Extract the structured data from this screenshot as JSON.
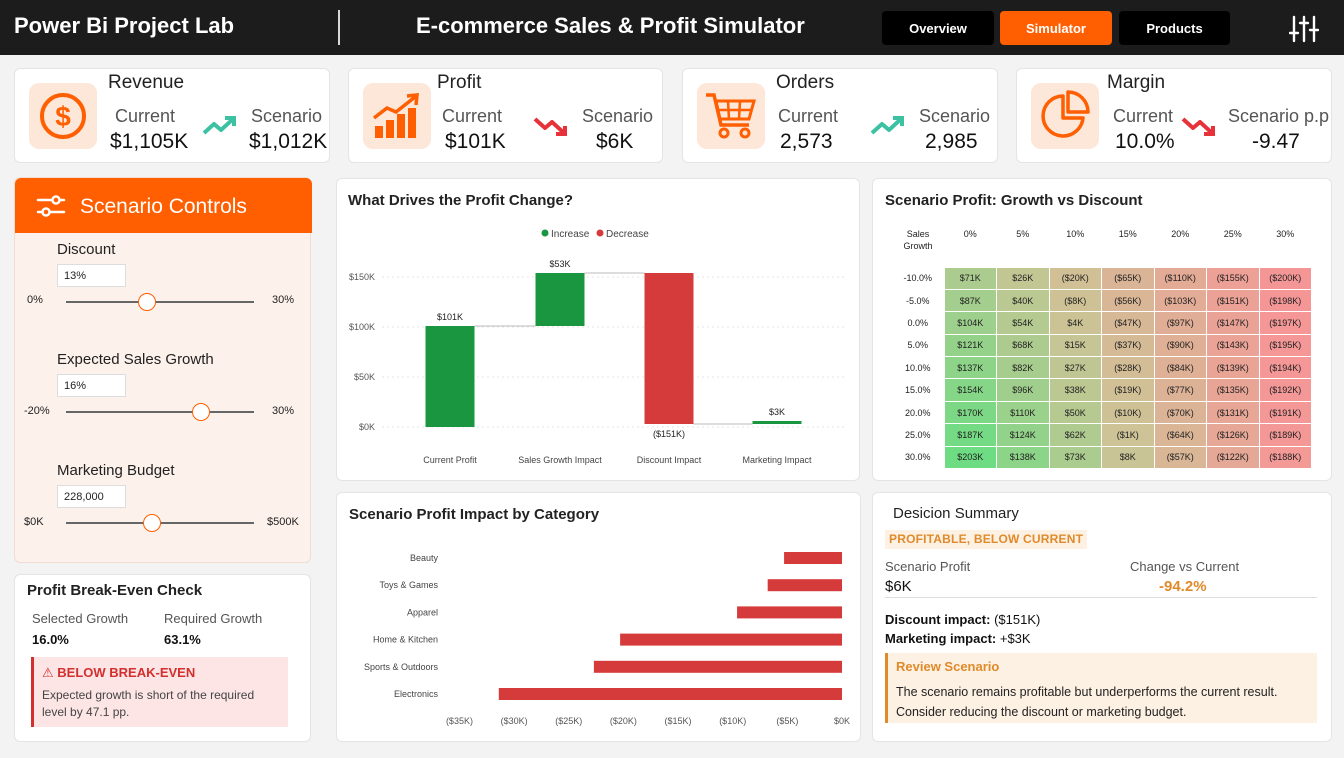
{
  "header": {
    "brand": "Power Bi Project Lab",
    "title": "E-commerce Sales & Profit Simulator",
    "nav": [
      "Overview",
      "Simulator",
      "Products"
    ],
    "active_nav": "Simulator",
    "settings_icon": "sliders-icon"
  },
  "kpis": [
    {
      "title": "Revenue",
      "icon": "dollar-icon",
      "current_label": "Current",
      "current": "$1,105K",
      "scenario_label": "Scenario",
      "scenario": "$1,012K",
      "trend": "up"
    },
    {
      "title": "Profit",
      "icon": "bar-growth-icon",
      "current_label": "Current",
      "current": "$101K",
      "scenario_label": "Scenario",
      "scenario": "$6K",
      "trend": "down"
    },
    {
      "title": "Orders",
      "icon": "cart-icon",
      "current_label": "Current",
      "current": "2,573",
      "scenario_label": "Scenario",
      "scenario": "2,985",
      "trend": "up"
    },
    {
      "title": "Margin",
      "icon": "pie-icon",
      "current_label": "Current",
      "current": "10.0%",
      "scenario_label": "Scenario p.p",
      "scenario": "-9.47",
      "trend": "down"
    }
  ],
  "colors": {
    "accent": "#ff5f00",
    "increase": "#1a9641",
    "decrease": "#d63b3b",
    "warning": "#e08a2b",
    "up_arrow": "#3cc2a2",
    "down_arrow": "#e8323a"
  },
  "controls": {
    "title": "Scenario Controls",
    "sliders": [
      {
        "label": "Discount",
        "value": "13%",
        "min": "0%",
        "max": "30%",
        "fraction": 0.433
      },
      {
        "label": "Expected Sales Growth",
        "value": "16%",
        "min": "-20%",
        "max": "30%",
        "fraction": 0.72
      },
      {
        "label": "Marketing Budget",
        "value": "228,000",
        "min": "$0K",
        "max": "$500K",
        "fraction": 0.456
      }
    ]
  },
  "breakeven": {
    "title": "Profit Break-Even Check",
    "selected_label": "Selected Growth",
    "selected": "16.0%",
    "required_label": "Required Growth",
    "required": "63.1%",
    "alert_title": "⚠ BELOW BREAK-EVEN",
    "alert_text": "Expected growth is short of the required level by 47.1 pp."
  },
  "waterfall": {
    "title": "What Drives the Profit Change?",
    "legend": [
      "Increase",
      "Decrease"
    ],
    "chart_data": {
      "type": "waterfall",
      "categories": [
        "Current Profit",
        "Sales Growth Impact",
        "Discount Impact",
        "Marketing Impact"
      ],
      "values": [
        101,
        53,
        -151,
        3
      ],
      "labels": [
        "$101K",
        "$53K",
        "($151K)",
        "$3K"
      ],
      "yticks": [
        "$0K",
        "$50K",
        "$100K",
        "$150K"
      ],
      "ylim": [
        0,
        150
      ]
    }
  },
  "heatmap": {
    "title": "Scenario Profit: Growth vs Discount",
    "corner": [
      "Sales",
      "Growth"
    ],
    "columns": [
      "0%",
      "5%",
      "10%",
      "15%",
      "20%",
      "25%",
      "30%"
    ],
    "rows": [
      "-10.0%",
      "-5.0%",
      "0.0%",
      "5.0%",
      "10.0%",
      "15.0%",
      "20.0%",
      "25.0%",
      "30.0%"
    ],
    "cells": [
      [
        "$71K",
        "$26K",
        "($20K)",
        "($65K)",
        "($110K)",
        "($155K)",
        "($200K)"
      ],
      [
        "$87K",
        "$40K",
        "($8K)",
        "($56K)",
        "($103K)",
        "($151K)",
        "($198K)"
      ],
      [
        "$104K",
        "$54K",
        "$4K",
        "($47K)",
        "($97K)",
        "($147K)",
        "($197K)"
      ],
      [
        "$121K",
        "$68K",
        "$15K",
        "($37K)",
        "($90K)",
        "($143K)",
        "($195K)"
      ],
      [
        "$137K",
        "$82K",
        "$27K",
        "($28K)",
        "($84K)",
        "($139K)",
        "($194K)"
      ],
      [
        "$154K",
        "$96K",
        "$38K",
        "($19K)",
        "($77K)",
        "($135K)",
        "($192K)"
      ],
      [
        "$170K",
        "$110K",
        "$50K",
        "($10K)",
        "($70K)",
        "($131K)",
        "($191K)"
      ],
      [
        "$187K",
        "$124K",
        "$62K",
        "($1K)",
        "($64K)",
        "($126K)",
        "($189K)"
      ],
      [
        "$203K",
        "$138K",
        "$73K",
        "$8K",
        "($57K)",
        "($122K)",
        "($188K)"
      ]
    ],
    "cell_values": [
      [
        71,
        26,
        -20,
        -65,
        -110,
        -155,
        -200
      ],
      [
        87,
        40,
        -8,
        -56,
        -103,
        -151,
        -198
      ],
      [
        104,
        54,
        4,
        -47,
        -97,
        -147,
        -197
      ],
      [
        121,
        68,
        15,
        -37,
        -90,
        -143,
        -195
      ],
      [
        137,
        82,
        27,
        -28,
        -84,
        -139,
        -194
      ],
      [
        154,
        96,
        38,
        -19,
        -77,
        -135,
        -192
      ],
      [
        170,
        110,
        50,
        -10,
        -70,
        -131,
        -191
      ],
      [
        187,
        124,
        62,
        -1,
        -64,
        -126,
        -189
      ],
      [
        203,
        138,
        73,
        8,
        -57,
        -122,
        -188
      ]
    ]
  },
  "category": {
    "title": "Scenario Profit Impact by Category",
    "chart_data": {
      "type": "bar",
      "orientation": "horizontal",
      "categories": [
        "Beauty",
        "Toys & Games",
        "Apparel",
        "Home & Kitchen",
        "Sports & Outdoors",
        "Electronics"
      ],
      "values": [
        -5.3,
        -6.8,
        -9.6,
        -20.3,
        -22.7,
        -31.4
      ],
      "xticks": [
        "($35K)",
        "($30K)",
        "($25K)",
        "($20K)",
        "($15K)",
        "($10K)",
        "($5K)",
        "$0K"
      ],
      "xlim": [
        -35,
        0
      ]
    }
  },
  "summary": {
    "title": "Desicion Summary",
    "badge": "PROFITABLE, BELOW CURRENT",
    "profit_label": "Scenario Profit",
    "profit": "$6K",
    "change_label": "Change vs Current",
    "change": "-94.2%",
    "discount_impact_label": "Discount impact:",
    "discount_impact": " ($151K)",
    "marketing_impact_label": "Marketing impact:",
    "marketing_impact": " +$3K",
    "review_title": "Review Scenario",
    "review_text": "The scenario remains profitable but underperforms the current result. Consider reducing the discount or marketing budget."
  }
}
